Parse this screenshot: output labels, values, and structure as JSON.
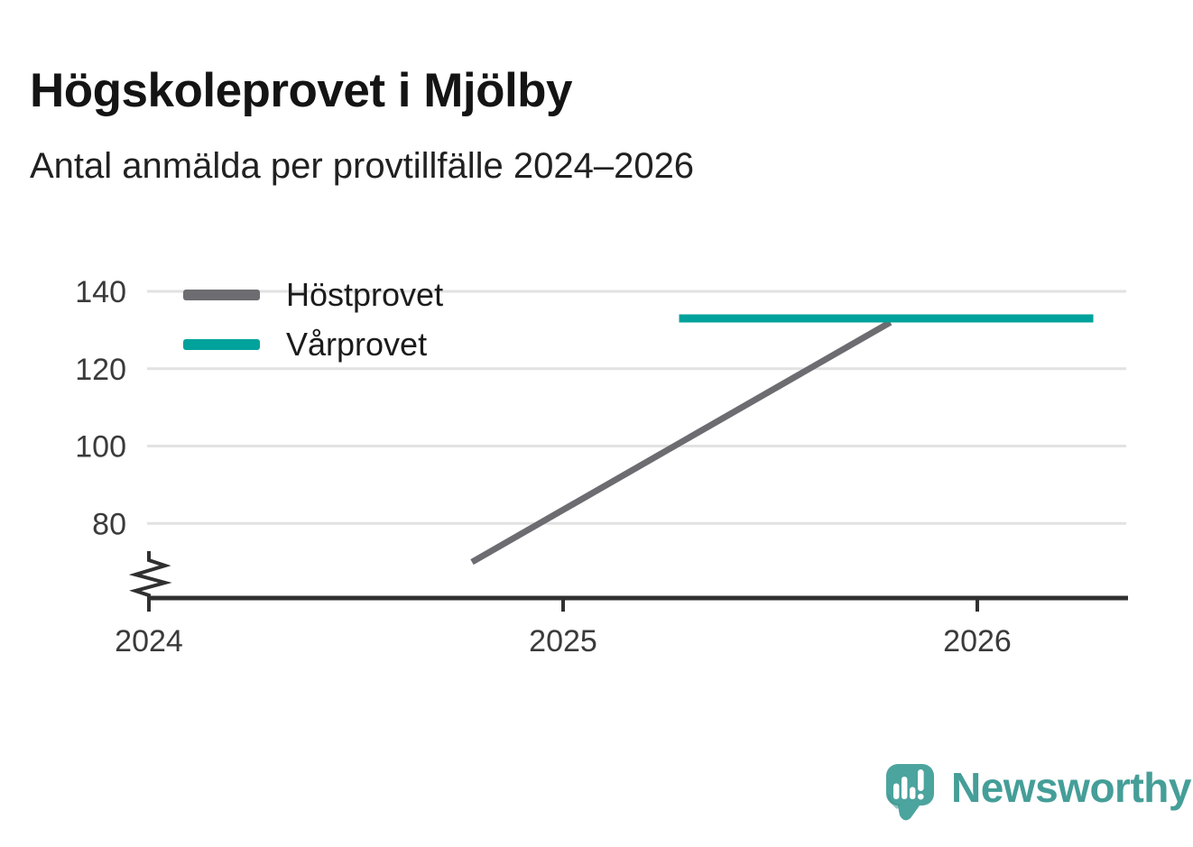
{
  "chart_data": {
    "type": "line",
    "title": "Högskoleprovet i Mjölby",
    "subtitle": "Antal anmälda per provtillfälle 2024–2026",
    "x_ticks": [
      2024,
      2025,
      2026
    ],
    "y_ticks": [
      80,
      100,
      120,
      140
    ],
    "xlim": [
      2024,
      2026.35
    ],
    "ylim": [
      61,
      145
    ],
    "axis_break": true,
    "grid": "horizontal",
    "legend_position": "top-left-inside",
    "series": [
      {
        "name": "Höstprovet",
        "color": "#6c6c71",
        "points": [
          {
            "x": 2024.78,
            "y": 70
          },
          {
            "x": 2025.79,
            "y": 132
          }
        ]
      },
      {
        "name": "Vårprovet",
        "color": "#00a29b",
        "points": [
          {
            "x": 2025.28,
            "y": 133
          },
          {
            "x": 2026.28,
            "y": 133
          }
        ]
      }
    ]
  },
  "colors": {
    "grid": "#e2e2e2",
    "axis": "#303030",
    "tick_labels": "#3a3a3a",
    "legend_text": "#1b1b1b"
  },
  "footer": {
    "brand": "Newsworthy",
    "logo_color": "#4ca49e",
    "logo_glyph_color": "#ffffff",
    "text_color": "#459e98"
  }
}
